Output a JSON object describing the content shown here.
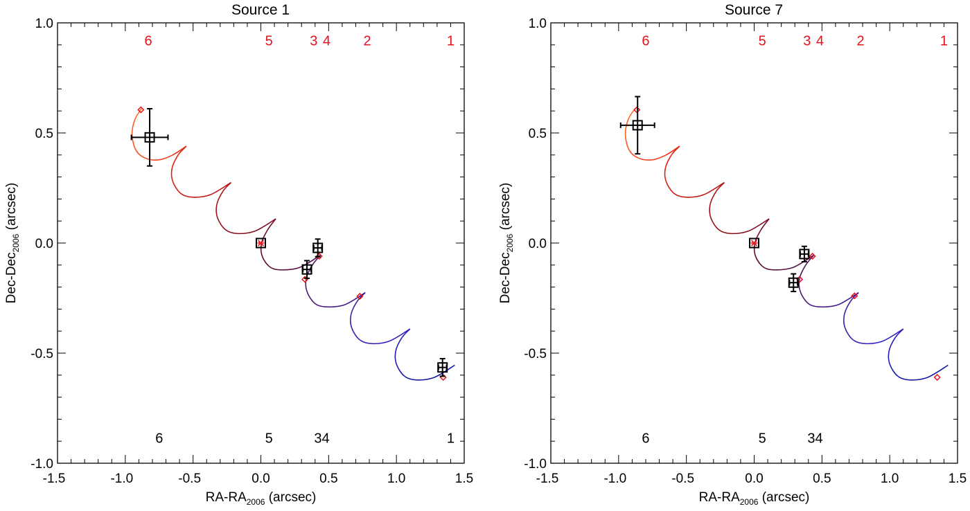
{
  "chart_data": [
    {
      "type": "scatter",
      "title": "Source 1",
      "xlabel": {
        "main": "RA-RA",
        "sub": "2006",
        "unit": " (arcsec)"
      },
      "ylabel": {
        "main": "Dec-Dec",
        "sub": "2006",
        "unit": " (arcsec)"
      },
      "xlim": [
        -1.5,
        1.5
      ],
      "ylim": [
        -1.0,
        1.0
      ],
      "xticks": [
        "-1.5",
        "-1.0",
        "-0.5",
        "0.0",
        "0.5",
        "1.0",
        "1.5"
      ],
      "yticks": [
        "-1.0",
        "-0.5",
        "0.0",
        "0.5",
        "1.0"
      ],
      "grid": false,
      "observed": [
        {
          "epoch": "6",
          "x": -0.82,
          "y": 0.48,
          "xerr": 0.135,
          "yerr": 0.13
        },
        {
          "epoch": "5",
          "x": 0.0,
          "y": 0.0,
          "xerr": 0.0,
          "yerr": 0.0
        },
        {
          "epoch": "3",
          "x": 0.34,
          "y": -0.12,
          "xerr": 0.03,
          "yerr": 0.04
        },
        {
          "epoch": "4",
          "x": 0.42,
          "y": -0.022,
          "xerr": 0.03,
          "yerr": 0.04
        },
        {
          "epoch": "1",
          "x": 1.34,
          "y": -0.565,
          "xerr": 0.03,
          "yerr": 0.04
        }
      ],
      "predicted": [
        {
          "epoch": "6",
          "x": -0.885,
          "y": 0.605
        },
        {
          "epoch": "5",
          "x": 0.0,
          "y": 0.0
        },
        {
          "epoch": "3",
          "x": 0.325,
          "y": -0.165
        },
        {
          "epoch": "4",
          "x": 0.43,
          "y": -0.06
        },
        {
          "epoch": "2",
          "x": 0.73,
          "y": -0.242
        },
        {
          "epoch": "1",
          "x": 1.345,
          "y": -0.61
        }
      ],
      "predicted_labels": [
        {
          "text": "6",
          "x": -0.83,
          "y": 0.92
        },
        {
          "text": "5",
          "x": 0.06,
          "y": 0.92
        },
        {
          "text": "3",
          "x": 0.39,
          "y": 0.92
        },
        {
          "text": "4",
          "x": 0.485,
          "y": 0.92
        },
        {
          "text": "2",
          "x": 0.785,
          "y": 0.92
        },
        {
          "text": "1",
          "x": 1.4,
          "y": 0.92
        }
      ],
      "observed_labels": [
        {
          "text": "6",
          "x": -0.75,
          "y": -0.885
        },
        {
          "text": "5",
          "x": 0.06,
          "y": -0.885
        },
        {
          "text": "34",
          "x": 0.45,
          "y": -0.885
        },
        {
          "text": "1",
          "x": 1.4,
          "y": -0.885
        }
      ]
    },
    {
      "type": "scatter",
      "title": "Source 7",
      "xlabel": {
        "main": "RA-RA",
        "sub": "2006",
        "unit": " (arcsec)"
      },
      "ylabel": {
        "main": "Dec-Dec",
        "sub": "2006",
        "unit": " (arcsec)"
      },
      "xlim": [
        -1.5,
        1.5
      ],
      "ylim": [
        -1.0,
        1.0
      ],
      "xticks": [
        "-1.5",
        "-1.0",
        "-0.5",
        "0.0",
        "0.5",
        "1.0",
        "1.5"
      ],
      "yticks": [
        "-1.0",
        "-0.5",
        "0.0",
        "0.5",
        "1.0"
      ],
      "grid": false,
      "observed": [
        {
          "epoch": "6",
          "x": -0.86,
          "y": 0.535,
          "xerr": 0.125,
          "yerr": 0.13
        },
        {
          "epoch": "5",
          "x": 0.0,
          "y": 0.0,
          "xerr": 0.0,
          "yerr": 0.0
        },
        {
          "epoch": "3",
          "x": 0.29,
          "y": -0.18,
          "xerr": 0.03,
          "yerr": 0.04
        },
        {
          "epoch": "4",
          "x": 0.37,
          "y": -0.05,
          "xerr": 0.03,
          "yerr": 0.035
        }
      ],
      "predicted": [
        {
          "epoch": "6",
          "x": -0.865,
          "y": 0.605
        },
        {
          "epoch": "5",
          "x": 0.0,
          "y": 0.0
        },
        {
          "epoch": "3",
          "x": 0.335,
          "y": -0.165
        },
        {
          "epoch": "4",
          "x": 0.43,
          "y": -0.06
        },
        {
          "epoch": "2",
          "x": 0.74,
          "y": -0.24
        },
        {
          "epoch": "1",
          "x": 1.35,
          "y": -0.61
        }
      ],
      "predicted_labels": [
        {
          "text": "6",
          "x": -0.8,
          "y": 0.92
        },
        {
          "text": "5",
          "x": 0.06,
          "y": 0.92
        },
        {
          "text": "3",
          "x": 0.39,
          "y": 0.92
        },
        {
          "text": "4",
          "x": 0.485,
          "y": 0.92
        },
        {
          "text": "2",
          "x": 0.785,
          "y": 0.92
        },
        {
          "text": "1",
          "x": 1.4,
          "y": 0.92
        }
      ],
      "observed_labels": [
        {
          "text": "6",
          "x": -0.8,
          "y": -0.885
        },
        {
          "text": "5",
          "x": 0.06,
          "y": -0.885
        },
        {
          "text": "34",
          "x": 0.45,
          "y": -0.885
        }
      ]
    }
  ],
  "track": [
    [
      [
        -0.88,
        0.61
      ],
      [
        -0.93,
        0.56
      ],
      [
        -0.95,
        0.49
      ],
      [
        -0.92,
        0.42
      ],
      [
        -0.85,
        0.385
      ],
      [
        -0.75,
        0.378
      ],
      [
        -0.65,
        0.4
      ],
      [
        -0.55,
        0.44
      ]
    ],
    [
      [
        -0.55,
        0.44
      ],
      [
        -0.61,
        0.4
      ],
      [
        -0.655,
        0.34
      ],
      [
        -0.65,
        0.28
      ],
      [
        -0.59,
        0.225
      ],
      [
        -0.5,
        0.208
      ],
      [
        -0.37,
        0.22
      ],
      [
        -0.22,
        0.275
      ]
    ],
    [
      [
        -0.22,
        0.275
      ],
      [
        -0.28,
        0.235
      ],
      [
        -0.325,
        0.175
      ],
      [
        -0.32,
        0.115
      ],
      [
        -0.26,
        0.06
      ],
      [
        -0.17,
        0.043
      ],
      [
        -0.04,
        0.055
      ],
      [
        0.11,
        0.11
      ]
    ],
    [
      [
        0.11,
        0.11
      ],
      [
        0.05,
        0.06
      ],
      [
        0.005,
        0.0
      ],
      [
        0.01,
        -0.06
      ],
      [
        0.07,
        -0.11
      ],
      [
        0.16,
        -0.122
      ],
      [
        0.29,
        -0.11
      ],
      [
        0.44,
        -0.055
      ]
    ],
    [
      [
        0.44,
        -0.055
      ],
      [
        0.38,
        -0.1
      ],
      [
        0.335,
        -0.16
      ],
      [
        0.34,
        -0.22
      ],
      [
        0.4,
        -0.275
      ],
      [
        0.49,
        -0.29
      ],
      [
        0.62,
        -0.28
      ],
      [
        0.77,
        -0.225
      ]
    ],
    [
      [
        0.77,
        -0.225
      ],
      [
        0.71,
        -0.265
      ],
      [
        0.665,
        -0.325
      ],
      [
        0.67,
        -0.385
      ],
      [
        0.73,
        -0.44
      ],
      [
        0.82,
        -0.457
      ],
      [
        0.95,
        -0.445
      ],
      [
        1.1,
        -0.39
      ]
    ],
    [
      [
        1.1,
        -0.39
      ],
      [
        1.04,
        -0.43
      ],
      [
        0.995,
        -0.49
      ],
      [
        1.0,
        -0.55
      ],
      [
        1.06,
        -0.605
      ],
      [
        1.15,
        -0.622
      ],
      [
        1.28,
        -0.61
      ],
      [
        1.43,
        -0.555
      ]
    ]
  ],
  "colors": {
    "track_gradient": [
      "#ff6a22",
      "#e02010",
      "#a01018",
      "#5a0a2a",
      "#4a1a80",
      "#3020c0",
      "#1018a8"
    ],
    "predicted": "#e8101a",
    "observed": "#000000",
    "axes": "#000000"
  }
}
